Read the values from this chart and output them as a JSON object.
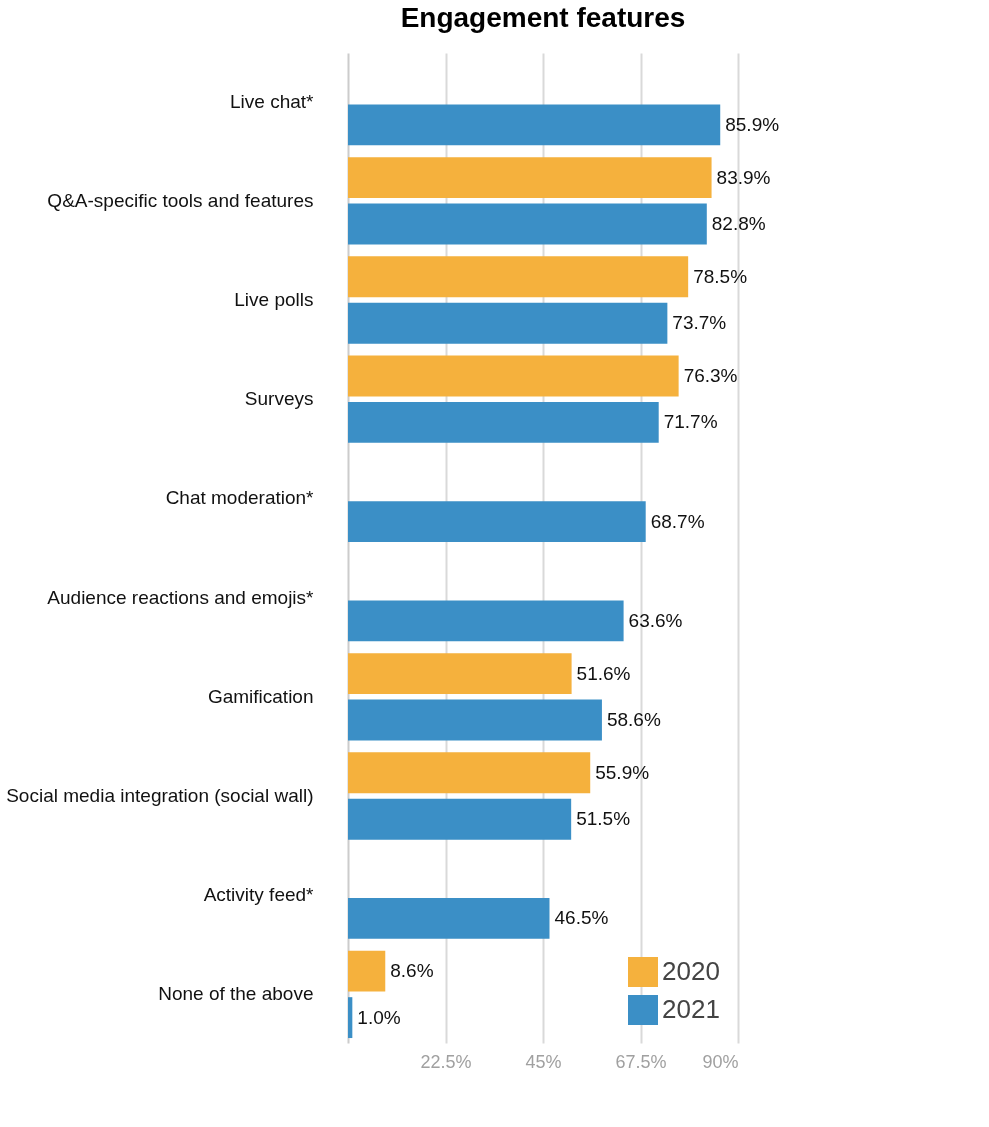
{
  "chart_data": {
    "type": "bar",
    "orientation": "horizontal",
    "title": "Engagement features",
    "categories": [
      "Live chat*",
      "Q&A-specific tools and features",
      "Live polls",
      "Surveys",
      "Chat moderation*",
      "Audience reactions and emojis*",
      "Gamification",
      "Social media integration (social wall)",
      "Activity feed*",
      "None of the above"
    ],
    "series": [
      {
        "name": "2020",
        "color": "#f5b13d",
        "values": [
          null,
          83.9,
          78.5,
          76.3,
          null,
          null,
          51.6,
          55.9,
          null,
          8.6
        ],
        "value_labels": [
          null,
          "83.9%",
          "78.5%",
          "76.3%",
          null,
          null,
          "51.6%",
          "55.9%",
          null,
          "8.6%"
        ]
      },
      {
        "name": "2021",
        "color": "#3b8fc6",
        "values": [
          85.9,
          82.8,
          73.7,
          71.7,
          68.7,
          63.6,
          58.6,
          51.5,
          46.5,
          1.0
        ],
        "value_labels": [
          "85.9%",
          "82.8%",
          "73.7%",
          "71.7%",
          "68.7%",
          "63.6%",
          "58.6%",
          "51.5%",
          "46.5%",
          "1.0%"
        ]
      }
    ],
    "xlim": [
      0,
      90
    ],
    "xticks": [
      {
        "value": 22.5,
        "label": "22.5%"
      },
      {
        "value": 45,
        "label": "45%"
      },
      {
        "value": 67.5,
        "label": "67.5%"
      },
      {
        "value": 90,
        "label": "90%"
      }
    ],
    "grid": "x",
    "legend": "bottom right"
  }
}
